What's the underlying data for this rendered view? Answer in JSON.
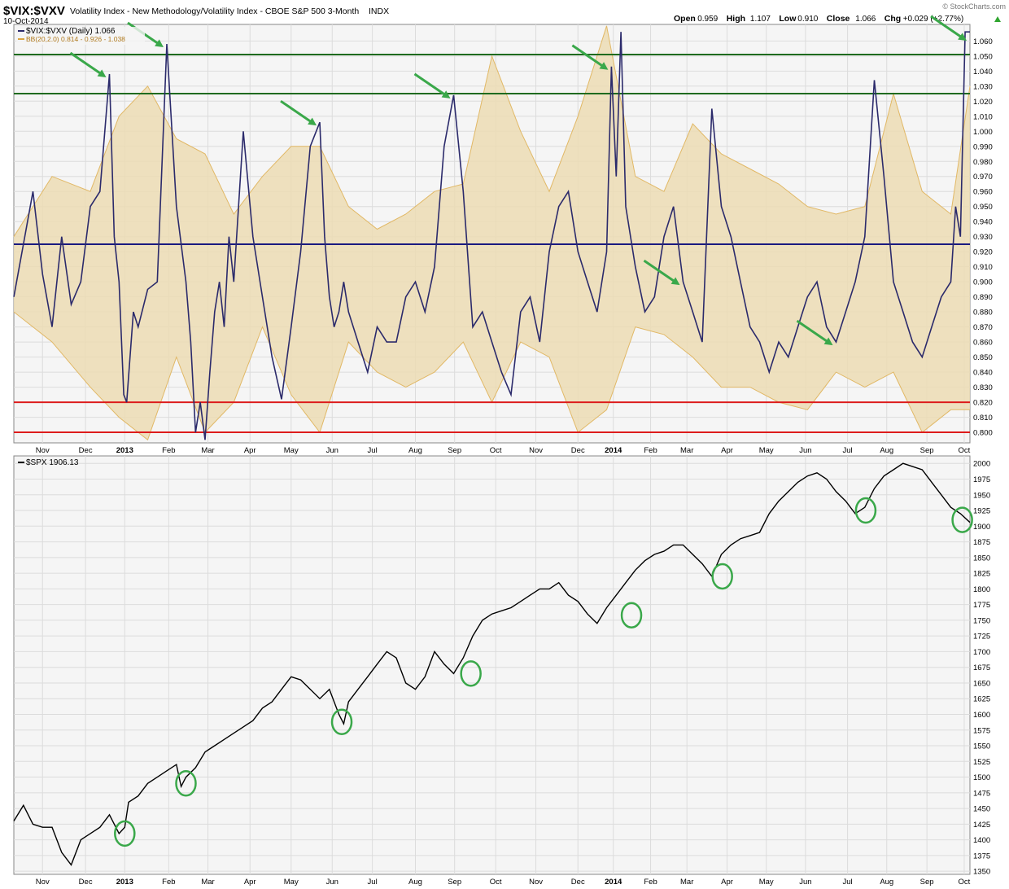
{
  "header": {
    "symbol": "$VIX:$VXV",
    "description": "Volatility Index - New Methodology/Volatility Index - CBOE S&P 500 3-Month",
    "exchange": "INDX",
    "date": "10-Oct-2014",
    "watermark": "© StockCharts.com",
    "quote": [
      {
        "label": "Open",
        "value": "0.959"
      },
      {
        "label": "High",
        "value": "1.107"
      },
      {
        "label": "Low",
        "value": "0.910"
      },
      {
        "label": "Close",
        "value": "1.066"
      },
      {
        "label": "Chg",
        "value": "+0.029 (+2.77%)"
      }
    ]
  },
  "colors": {
    "ratio_line": "#2b2a6b",
    "band_fill": "#ecdcb4",
    "band_edge": "#e1b866",
    "green_level": "#1f6b1f",
    "red_level": "#dd1c1c",
    "blue_level": "#1a1a80",
    "arrow": "#3aa84a",
    "circle": "#3aa84a",
    "panel_bg": "#f5f5f5",
    "grid": "#dcdcdc",
    "spx_line": "#000000",
    "up_triangle": "#2fa52f"
  },
  "chart_data": [
    {
      "type": "line",
      "panel": "upper",
      "legend": [
        {
          "label": "$VIX:$VXV (Daily) 1.066",
          "color": "#2b2a6b"
        },
        {
          "label": "BB(20,2.0) 0.814 - 0.926 - 1.038",
          "color": "#d9a441"
        }
      ],
      "x_ticks": [
        "Nov",
        "Dec",
        "2013",
        "Feb",
        "Mar",
        "Apr",
        "May",
        "Jun",
        "Jul",
        "Aug",
        "Sep",
        "Oct",
        "Nov",
        "Dec",
        "2014",
        "Feb",
        "Mar",
        "Apr",
        "May",
        "Jun",
        "Jul",
        "Aug",
        "Sep",
        "Oct"
      ],
      "x_tick_fraction": [
        0.03,
        0.075,
        0.116,
        0.162,
        0.203,
        0.247,
        0.29,
        0.333,
        0.375,
        0.42,
        0.461,
        0.504,
        0.546,
        0.59,
        0.627,
        0.666,
        0.704,
        0.746,
        0.787,
        0.828,
        0.872,
        0.913,
        0.955,
        0.994
      ],
      "y_ticks": [
        "0.800",
        "0.810",
        "0.820",
        "0.830",
        "0.840",
        "0.850",
        "0.860",
        "0.870",
        "0.880",
        "0.890",
        "0.900",
        "0.910",
        "0.920",
        "0.930",
        "0.940",
        "0.950",
        "0.960",
        "0.970",
        "0.980",
        "0.990",
        "1.000",
        "1.010",
        "1.020",
        "1.030",
        "1.040",
        "1.050",
        "1.060"
      ],
      "ylim": [
        0.793,
        1.071
      ],
      "levels": [
        {
          "value": 1.051,
          "color": "green"
        },
        {
          "value": 1.025,
          "color": "green"
        },
        {
          "value": 0.925,
          "color": "blue"
        },
        {
          "value": 0.82,
          "color": "red"
        },
        {
          "value": 0.8,
          "color": "red"
        }
      ],
      "series": [
        {
          "name": "$VIX:$VXV (Daily)",
          "x": [
            0.0,
            0.01,
            0.02,
            0.03,
            0.04,
            0.05,
            0.06,
            0.07,
            0.08,
            0.09,
            0.1,
            0.105,
            0.11,
            0.115,
            0.118,
            0.125,
            0.13,
            0.14,
            0.15,
            0.16,
            0.17,
            0.18,
            0.185,
            0.19,
            0.195,
            0.2,
            0.205,
            0.21,
            0.215,
            0.22,
            0.225,
            0.23,
            0.24,
            0.25,
            0.26,
            0.27,
            0.28,
            0.29,
            0.3,
            0.31,
            0.32,
            0.325,
            0.33,
            0.335,
            0.34,
            0.345,
            0.35,
            0.36,
            0.37,
            0.38,
            0.39,
            0.4,
            0.41,
            0.42,
            0.43,
            0.44,
            0.45,
            0.46,
            0.47,
            0.48,
            0.49,
            0.5,
            0.51,
            0.52,
            0.53,
            0.54,
            0.55,
            0.56,
            0.57,
            0.58,
            0.59,
            0.6,
            0.61,
            0.62,
            0.625,
            0.63,
            0.635,
            0.64,
            0.65,
            0.66,
            0.67,
            0.68,
            0.69,
            0.7,
            0.71,
            0.72,
            0.73,
            0.74,
            0.75,
            0.76,
            0.77,
            0.78,
            0.79,
            0.8,
            0.81,
            0.82,
            0.83,
            0.84,
            0.85,
            0.86,
            0.87,
            0.88,
            0.89,
            0.9,
            0.91,
            0.92,
            0.93,
            0.94,
            0.95,
            0.96,
            0.97,
            0.98,
            0.985,
            0.99,
            0.995,
            1.0
          ],
          "values": [
            0.89,
            0.925,
            0.96,
            0.905,
            0.87,
            0.93,
            0.885,
            0.9,
            0.95,
            0.96,
            1.038,
            0.93,
            0.9,
            0.825,
            0.82,
            0.88,
            0.87,
            0.895,
            0.9,
            1.058,
            0.95,
            0.9,
            0.86,
            0.8,
            0.82,
            0.795,
            0.84,
            0.88,
            0.9,
            0.87,
            0.93,
            0.9,
            1.0,
            0.93,
            0.89,
            0.85,
            0.822,
            0.87,
            0.92,
            0.99,
            1.006,
            0.93,
            0.89,
            0.87,
            0.88,
            0.9,
            0.88,
            0.86,
            0.84,
            0.87,
            0.86,
            0.86,
            0.89,
            0.9,
            0.88,
            0.91,
            0.99,
            1.024,
            0.96,
            0.87,
            0.88,
            0.86,
            0.84,
            0.825,
            0.88,
            0.89,
            0.86,
            0.92,
            0.95,
            0.96,
            0.92,
            0.9,
            0.88,
            0.92,
            1.043,
            0.97,
            1.066,
            0.95,
            0.91,
            0.88,
            0.89,
            0.93,
            0.95,
            0.9,
            0.88,
            0.86,
            1.015,
            0.95,
            0.93,
            0.9,
            0.87,
            0.86,
            0.84,
            0.86,
            0.85,
            0.87,
            0.89,
            0.9,
            0.87,
            0.86,
            0.88,
            0.9,
            0.93,
            1.034,
            0.97,
            0.9,
            0.88,
            0.86,
            0.85,
            0.87,
            0.89,
            0.9,
            0.95,
            0.93,
            1.066,
            1.066
          ]
        },
        {
          "name": "BB(20,2.0) upper",
          "x": [
            0.0,
            0.04,
            0.08,
            0.11,
            0.14,
            0.17,
            0.2,
            0.23,
            0.26,
            0.29,
            0.32,
            0.35,
            0.38,
            0.41,
            0.44,
            0.47,
            0.5,
            0.53,
            0.56,
            0.59,
            0.62,
            0.65,
            0.68,
            0.71,
            0.74,
            0.77,
            0.8,
            0.83,
            0.86,
            0.89,
            0.92,
            0.95,
            0.98,
            1.0
          ],
          "values": [
            0.93,
            0.97,
            0.96,
            1.01,
            1.03,
            0.995,
            0.985,
            0.945,
            0.97,
            0.99,
            0.99,
            0.95,
            0.935,
            0.945,
            0.96,
            0.965,
            1.05,
            1.0,
            0.96,
            1.01,
            1.07,
            0.97,
            0.96,
            1.005,
            0.985,
            0.975,
            0.965,
            0.95,
            0.945,
            0.95,
            1.025,
            0.96,
            0.945,
            1.03
          ]
        },
        {
          "name": "BB(20,2.0) lower",
          "x": [
            0.0,
            0.04,
            0.08,
            0.11,
            0.14,
            0.17,
            0.2,
            0.23,
            0.26,
            0.29,
            0.32,
            0.35,
            0.38,
            0.41,
            0.44,
            0.47,
            0.5,
            0.53,
            0.56,
            0.59,
            0.62,
            0.65,
            0.68,
            0.71,
            0.74,
            0.77,
            0.8,
            0.83,
            0.86,
            0.89,
            0.92,
            0.95,
            0.98,
            1.0
          ],
          "values": [
            0.88,
            0.86,
            0.83,
            0.81,
            0.795,
            0.85,
            0.8,
            0.82,
            0.87,
            0.825,
            0.8,
            0.86,
            0.84,
            0.83,
            0.84,
            0.86,
            0.82,
            0.86,
            0.85,
            0.8,
            0.815,
            0.87,
            0.865,
            0.85,
            0.83,
            0.83,
            0.82,
            0.815,
            0.84,
            0.83,
            0.84,
            0.8,
            0.815,
            0.815
          ]
        }
      ],
      "arrows": [
        0.1,
        0.16,
        0.32,
        0.46,
        0.625,
        0.7,
        0.86,
        1.0
      ]
    },
    {
      "type": "line",
      "panel": "lower",
      "legend": [
        {
          "label": "$SPX 1906.13",
          "color": "#000000"
        }
      ],
      "x_ticks": [
        "Nov",
        "Dec",
        "2013",
        "Feb",
        "Mar",
        "Apr",
        "May",
        "Jun",
        "Jul",
        "Aug",
        "Sep",
        "Oct",
        "Nov",
        "Dec",
        "2014",
        "Feb",
        "Mar",
        "Apr",
        "May",
        "Jun",
        "Jul",
        "Aug",
        "Sep",
        "Oct"
      ],
      "y_ticks": [
        "1350",
        "1375",
        "1400",
        "1425",
        "1450",
        "1475",
        "1500",
        "1525",
        "1550",
        "1575",
        "1600",
        "1625",
        "1650",
        "1675",
        "1700",
        "1725",
        "1750",
        "1775",
        "1800",
        "1825",
        "1850",
        "1875",
        "1900",
        "1925",
        "1950",
        "1975",
        "2000"
      ],
      "ylim": [
        1345,
        2012
      ],
      "series": [
        {
          "name": "$SPX",
          "x": [
            0.0,
            0.01,
            0.02,
            0.03,
            0.04,
            0.05,
            0.06,
            0.07,
            0.08,
            0.09,
            0.1,
            0.11,
            0.116,
            0.12,
            0.13,
            0.14,
            0.15,
            0.16,
            0.17,
            0.175,
            0.18,
            0.19,
            0.2,
            0.21,
            0.22,
            0.23,
            0.24,
            0.25,
            0.26,
            0.27,
            0.28,
            0.29,
            0.3,
            0.31,
            0.32,
            0.33,
            0.34,
            0.345,
            0.35,
            0.36,
            0.37,
            0.38,
            0.39,
            0.4,
            0.41,
            0.42,
            0.43,
            0.44,
            0.45,
            0.46,
            0.47,
            0.48,
            0.49,
            0.5,
            0.51,
            0.52,
            0.53,
            0.54,
            0.55,
            0.56,
            0.57,
            0.58,
            0.59,
            0.6,
            0.61,
            0.62,
            0.63,
            0.64,
            0.65,
            0.66,
            0.67,
            0.68,
            0.69,
            0.7,
            0.71,
            0.72,
            0.73,
            0.74,
            0.75,
            0.76,
            0.77,
            0.78,
            0.79,
            0.8,
            0.81,
            0.82,
            0.83,
            0.84,
            0.85,
            0.86,
            0.87,
            0.88,
            0.89,
            0.9,
            0.91,
            0.92,
            0.93,
            0.94,
            0.95,
            0.96,
            0.97,
            0.98,
            0.99,
            1.0
          ],
          "values": [
            1430,
            1455,
            1425,
            1420,
            1420,
            1380,
            1360,
            1400,
            1410,
            1420,
            1440,
            1410,
            1420,
            1460,
            1470,
            1490,
            1500,
            1510,
            1520,
            1485,
            1500,
            1515,
            1540,
            1550,
            1560,
            1570,
            1580,
            1590,
            1610,
            1620,
            1640,
            1660,
            1655,
            1640,
            1625,
            1640,
            1600,
            1585,
            1620,
            1640,
            1660,
            1680,
            1700,
            1690,
            1650,
            1640,
            1660,
            1700,
            1680,
            1665,
            1690,
            1725,
            1750,
            1760,
            1765,
            1770,
            1780,
            1790,
            1800,
            1800,
            1810,
            1790,
            1780,
            1760,
            1745,
            1770,
            1790,
            1810,
            1830,
            1845,
            1855,
            1860,
            1870,
            1870,
            1855,
            1840,
            1820,
            1855,
            1870,
            1880,
            1885,
            1890,
            1920,
            1940,
            1955,
            1970,
            1980,
            1985,
            1975,
            1955,
            1940,
            1920,
            1930,
            1960,
            1980,
            1990,
            2000,
            1995,
            1990,
            1970,
            1950,
            1930,
            1920,
            1906
          ]
        }
      ],
      "circles": [
        {
          "x": 0.116,
          "y": 1410
        },
        {
          "x": 0.18,
          "y": 1490
        },
        {
          "x": 0.343,
          "y": 1588
        },
        {
          "x": 0.478,
          "y": 1665
        },
        {
          "x": 0.646,
          "y": 1758
        },
        {
          "x": 0.741,
          "y": 1820
        },
        {
          "x": 0.891,
          "y": 1925
        },
        {
          "x": 0.992,
          "y": 1910
        }
      ]
    }
  ]
}
